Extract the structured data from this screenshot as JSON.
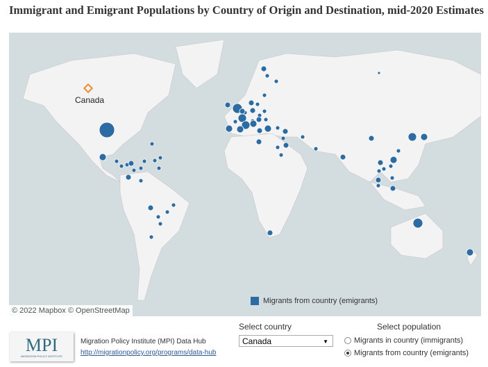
{
  "title": "Immigrant and Emigrant Populations by Country of Origin and Destination, mid-2020 Estimates",
  "map": {
    "attribution": "© 2022 Mapbox  © OpenStreetMap",
    "selected_label": "Canada",
    "legend": "Migrants from country (emigrants)",
    "bubble_color": "#2c6ca4",
    "selected_marker_color": "#f08c2e",
    "water_color": "#d3dcdf",
    "land_color": "#f3f3f3"
  },
  "footer": {
    "logo_text": "MPI",
    "logo_sub": "MIGRATION POLICY INSTITUTE",
    "org": "Migration Policy Institute (MPI) Data Hub",
    "link": "http://migrationpolicy.org/programs/data-hub",
    "country_label": "Select country",
    "country_value": "Canada",
    "population_label": "Select population",
    "options": [
      {
        "label": "Migrants in country (immigrants)",
        "selected": false
      },
      {
        "label": "Migrants from country (emigrants)",
        "selected": true
      }
    ]
  }
}
